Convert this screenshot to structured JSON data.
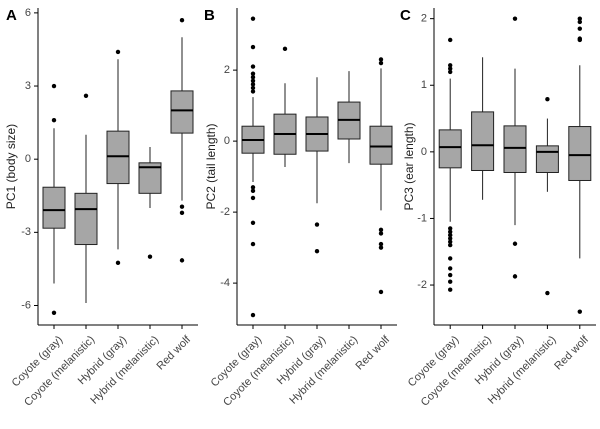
{
  "chart_data": [
    {
      "type": "box",
      "panel_label": "A",
      "y_label": "PC1 (body size)",
      "categories": [
        "Coyote (gray)",
        "Coyote (melanistic)",
        "Hybrid (gray)",
        "Hybrid (melanistic)",
        "Red wolf"
      ],
      "boxes": [
        {
          "whislo": -5.1,
          "q1": -2.83,
          "med": -2.09,
          "q3": -1.15,
          "whishi": 1.27,
          "fliers": [
            3.0,
            1.6,
            -6.3
          ]
        },
        {
          "whislo": -5.9,
          "q1": -3.5,
          "med": -2.05,
          "q3": -1.4,
          "whishi": 1.0,
          "fliers": [
            2.6
          ]
        },
        {
          "whislo": -3.7,
          "q1": -1.0,
          "med": 0.12,
          "q3": 1.15,
          "whishi": 4.1,
          "fliers": [
            4.4,
            -4.25
          ]
        },
        {
          "whislo": -2.0,
          "q1": -1.4,
          "med": -0.33,
          "q3": -0.15,
          "whishi": 0.5,
          "fliers": [
            -4.0
          ]
        },
        {
          "whislo": -1.7,
          "q1": 1.07,
          "med": 2.0,
          "q3": 2.8,
          "whishi": 5.0,
          "fliers": [
            5.7,
            -1.95,
            -2.2,
            -4.15
          ]
        }
      ],
      "ylim": [
        -6.8,
        6.2
      ],
      "yticks": [
        6,
        3,
        0,
        -3,
        -6
      ],
      "fill": "#a6a6a6"
    },
    {
      "type": "box",
      "panel_label": "B",
      "y_label": "PC2 (tail length)",
      "categories": [
        "Coyote (gray)",
        "Coyote (melanistic)",
        "Hybrid (gray)",
        "Hybrid (melanistic)",
        "Red wolf"
      ],
      "boxes": [
        {
          "whislo": -1.15,
          "q1": -0.34,
          "med": 0.03,
          "q3": 0.42,
          "whishi": 1.24,
          "fliers": [
            3.45,
            2.65,
            2.1,
            1.9,
            1.8,
            1.7,
            1.6,
            1.5,
            1.4,
            -1.3,
            -1.4,
            -1.6,
            -2.3,
            -2.9,
            -4.9
          ]
        },
        {
          "whislo": -0.73,
          "q1": -0.37,
          "med": 0.2,
          "q3": 0.76,
          "whishi": 1.63,
          "fliers": [
            2.6
          ]
        },
        {
          "whislo": -1.75,
          "q1": -0.28,
          "med": 0.2,
          "q3": 0.68,
          "whishi": 1.8,
          "fliers": [
            -2.35,
            -3.1
          ]
        },
        {
          "whislo": -0.62,
          "q1": 0.06,
          "med": 0.6,
          "q3": 1.1,
          "whishi": 1.97,
          "fliers": []
        },
        {
          "whislo": -1.95,
          "q1": -0.65,
          "med": -0.15,
          "q3": 0.42,
          "whishi": 2.05,
          "fliers": [
            2.3,
            2.2,
            -2.5,
            -2.6,
            -2.9,
            -3.0,
            -4.25
          ]
        }
      ],
      "ylim": [
        -5.18,
        3.75
      ],
      "yticks": [
        2,
        0,
        -2,
        -4
      ],
      "fill": "#a6a6a6"
    },
    {
      "type": "box",
      "panel_label": "C",
      "y_label": "PC3 (ear length)",
      "categories": [
        "Coyote (gray)",
        "Coyote (melanistic)",
        "Hybrid (gray)",
        "Hybrid (melanistic)",
        "Red wolf"
      ],
      "boxes": [
        {
          "whislo": -1.05,
          "q1": -0.24,
          "med": 0.07,
          "q3": 0.33,
          "whishi": 1.1,
          "fliers": [
            1.68,
            1.3,
            1.25,
            1.2,
            -1.15,
            -1.2,
            -1.25,
            -1.3,
            -1.35,
            -1.4,
            -1.6,
            -1.75,
            -1.85,
            -1.95,
            -2.07
          ]
        },
        {
          "whislo": -0.72,
          "q1": -0.28,
          "med": 0.1,
          "q3": 0.6,
          "whishi": 1.42,
          "fliers": []
        },
        {
          "whislo": -1.1,
          "q1": -0.31,
          "med": 0.06,
          "q3": 0.39,
          "whishi": 1.25,
          "fliers": [
            2.0,
            -1.38,
            -1.87
          ]
        },
        {
          "whislo": -0.6,
          "q1": -0.31,
          "med": 0.0,
          "q3": 0.09,
          "whishi": 0.5,
          "fliers": [
            0.79,
            -2.12
          ]
        },
        {
          "whislo": -1.6,
          "q1": -0.43,
          "med": -0.05,
          "q3": 0.38,
          "whishi": 1.3,
          "fliers": [
            2.0,
            1.95,
            1.85,
            1.7,
            1.68,
            -2.4
          ]
        }
      ],
      "ylim": [
        -2.6,
        2.16
      ],
      "yticks": [
        2,
        1,
        0,
        -1,
        -2
      ],
      "fill": "#a6a6a6"
    }
  ]
}
